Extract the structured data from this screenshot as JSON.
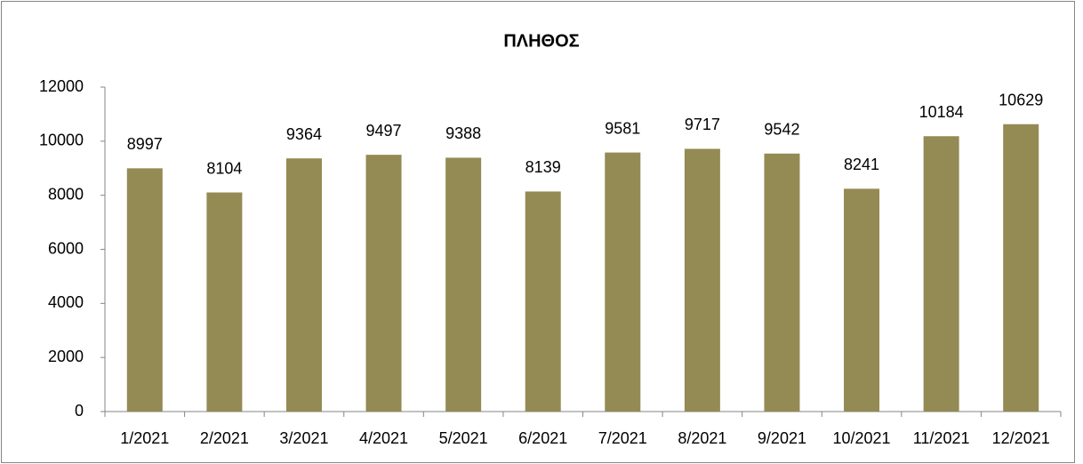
{
  "chart_data": {
    "type": "bar",
    "title": "ΠΛΗΘΟΣ",
    "categories": [
      "1/2021",
      "2/2021",
      "3/2021",
      "4/2021",
      "5/2021",
      "6/2021",
      "7/2021",
      "8/2021",
      "9/2021",
      "10/2021",
      "11/2021",
      "12/2021"
    ],
    "values": [
      8997,
      8104,
      9364,
      9497,
      9388,
      8139,
      9581,
      9717,
      9542,
      8241,
      10184,
      10629
    ],
    "color": "#948a54",
    "ylim": [
      0,
      12000
    ],
    "yticks": [
      0,
      2000,
      4000,
      6000,
      8000,
      10000,
      12000
    ],
    "grid": false
  }
}
